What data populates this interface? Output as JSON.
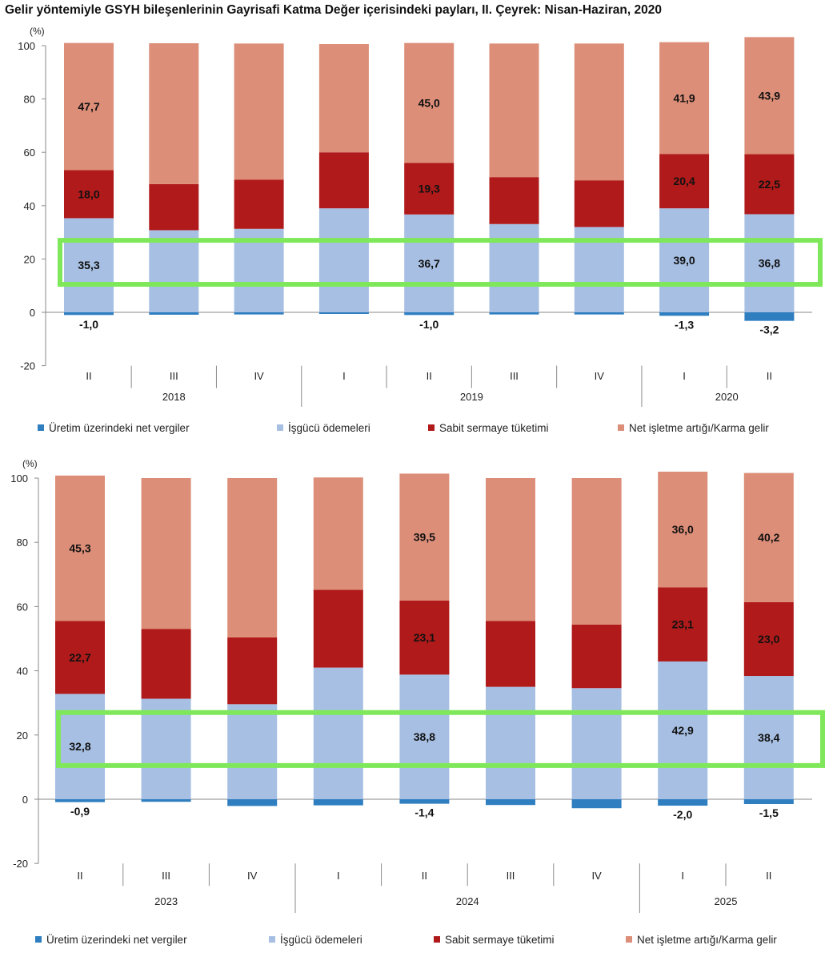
{
  "title": "Gelir yöntemiyle GSYH bileşenlerinin Gayrisafi Katma Değer içerisindeki payları, II. Çeyrek: Nisan-Haziran, 2020",
  "colors": {
    "net_taxes": "#2e7ec0",
    "labor": "#a6bfe3",
    "capital": "#b01a1a",
    "surplus": "#dc8e78",
    "highlight": "#7fe85a"
  },
  "chart_data": [
    {
      "type": "bar",
      "stacked": true,
      "unit_label": "(%)",
      "ylim": [
        -20,
        100
      ],
      "yticks": [
        "100",
        "80",
        "60",
        "40",
        "20",
        "0",
        "-20"
      ],
      "categories": [
        "II",
        "III",
        "IV",
        "I",
        "II",
        "III",
        "IV",
        "I",
        "II"
      ],
      "years": [
        {
          "label": "2018",
          "span": [
            0,
            2
          ]
        },
        {
          "label": "2019",
          "span": [
            3,
            6
          ]
        },
        {
          "label": "2020",
          "span": [
            7,
            8
          ]
        }
      ],
      "series": [
        {
          "name": "Üretim üzerindeki net vergiler",
          "values": [
            -1.0,
            -0.9,
            -0.8,
            -0.6,
            -1.0,
            -0.8,
            -0.8,
            -1.3,
            -3.2
          ]
        },
        {
          "name": "İşgücü ödemeleri",
          "values": [
            35.3,
            30.8,
            31.3,
            39.0,
            36.7,
            33.1,
            32.0,
            39.0,
            36.8
          ]
        },
        {
          "name": "Sabit sermaye tüketimi",
          "values": [
            18.0,
            17.3,
            18.4,
            21.0,
            19.3,
            17.6,
            17.5,
            20.4,
            22.5
          ]
        },
        {
          "name": "Net işletme artığı/Karma gelir",
          "values": [
            47.7,
            52.8,
            51.1,
            40.6,
            45.0,
            50.1,
            51.3,
            41.9,
            43.9
          ]
        }
      ],
      "data_labels": [
        {
          "series": 0,
          "index": 0,
          "text": "-1,0"
        },
        {
          "series": 0,
          "index": 4,
          "text": "-1,0"
        },
        {
          "series": 0,
          "index": 7,
          "text": "-1,3"
        },
        {
          "series": 0,
          "index": 8,
          "text": "-3,2"
        },
        {
          "series": 1,
          "index": 0,
          "text": "35,3"
        },
        {
          "series": 1,
          "index": 4,
          "text": "36,7"
        },
        {
          "series": 1,
          "index": 7,
          "text": "39,0"
        },
        {
          "series": 1,
          "index": 8,
          "text": "36,8"
        },
        {
          "series": 2,
          "index": 0,
          "text": "18,0"
        },
        {
          "series": 2,
          "index": 4,
          "text": "19,3"
        },
        {
          "series": 2,
          "index": 7,
          "text": "20,4"
        },
        {
          "series": 2,
          "index": 8,
          "text": "22,5"
        },
        {
          "series": 3,
          "index": 0,
          "text": "47,7"
        },
        {
          "series": 3,
          "index": 4,
          "text": "45,0"
        },
        {
          "series": 3,
          "index": 7,
          "text": "41,9"
        },
        {
          "series": 3,
          "index": 8,
          "text": "43,9"
        }
      ],
      "legend": [
        "Üretim üzerindeki net vergiler",
        "İşgücü ödemeleri",
        "Sabit sermaye tüketimi",
        "Net işletme artığı/Karma  gelir"
      ],
      "highlight": {
        "y_range": [
          10.5,
          27
        ]
      }
    },
    {
      "type": "bar",
      "stacked": true,
      "unit_label": "(%)",
      "ylim": [
        -20,
        100
      ],
      "yticks": [
        "100",
        "80",
        "60",
        "40",
        "20",
        "0",
        "-20"
      ],
      "categories": [
        "II",
        "III",
        "IV",
        "I",
        "II",
        "III",
        "IV",
        "I",
        "II"
      ],
      "years": [
        {
          "label": "2023",
          "span": [
            0,
            2
          ]
        },
        {
          "label": "2024",
          "span": [
            3,
            6
          ]
        },
        {
          "label": "2025",
          "span": [
            7,
            8
          ]
        }
      ],
      "series": [
        {
          "name": "Üretim üzerindeki net vergiler",
          "values": [
            -0.9,
            -0.8,
            -2.1,
            -1.9,
            -1.4,
            -1.8,
            -2.8,
            -2.0,
            -1.5
          ]
        },
        {
          "name": "İşgücü ödemeleri",
          "values": [
            32.8,
            31.3,
            29.6,
            41.0,
            38.8,
            35.0,
            34.6,
            42.9,
            38.4
          ]
        },
        {
          "name": "Sabit sermaye tüketimi",
          "values": [
            22.7,
            21.7,
            20.8,
            24.2,
            23.1,
            20.5,
            19.8,
            23.1,
            23.0
          ]
        },
        {
          "name": "Net işletme artığı/Karma gelir",
          "values": [
            45.3,
            47.0,
            49.6,
            35.0,
            39.5,
            44.5,
            45.6,
            36.0,
            40.2
          ]
        }
      ],
      "data_labels": [
        {
          "series": 0,
          "index": 0,
          "text": "-0,9"
        },
        {
          "series": 0,
          "index": 4,
          "text": "-1,4"
        },
        {
          "series": 0,
          "index": 7,
          "text": "-2,0"
        },
        {
          "series": 0,
          "index": 8,
          "text": "-1,5"
        },
        {
          "series": 1,
          "index": 0,
          "text": "32,8"
        },
        {
          "series": 1,
          "index": 4,
          "text": "38,8"
        },
        {
          "series": 1,
          "index": 7,
          "text": "42,9"
        },
        {
          "series": 1,
          "index": 8,
          "text": "38,4"
        },
        {
          "series": 2,
          "index": 0,
          "text": "22,7"
        },
        {
          "series": 2,
          "index": 4,
          "text": "23,1"
        },
        {
          "series": 2,
          "index": 7,
          "text": "23,1"
        },
        {
          "series": 2,
          "index": 8,
          "text": "23,0"
        },
        {
          "series": 3,
          "index": 0,
          "text": "45,3"
        },
        {
          "series": 3,
          "index": 4,
          "text": "39,5"
        },
        {
          "series": 3,
          "index": 7,
          "text": "36,0"
        },
        {
          "series": 3,
          "index": 8,
          "text": "40,2"
        }
      ],
      "legend": [
        "Üretim üzerindeki net vergiler",
        "İşgücü ödemeleri",
        "Sabit sermaye tüketimi",
        "Net işletme artığı/Karma gelir"
      ],
      "highlight": {
        "y_range": [
          10.5,
          27
        ]
      }
    }
  ]
}
